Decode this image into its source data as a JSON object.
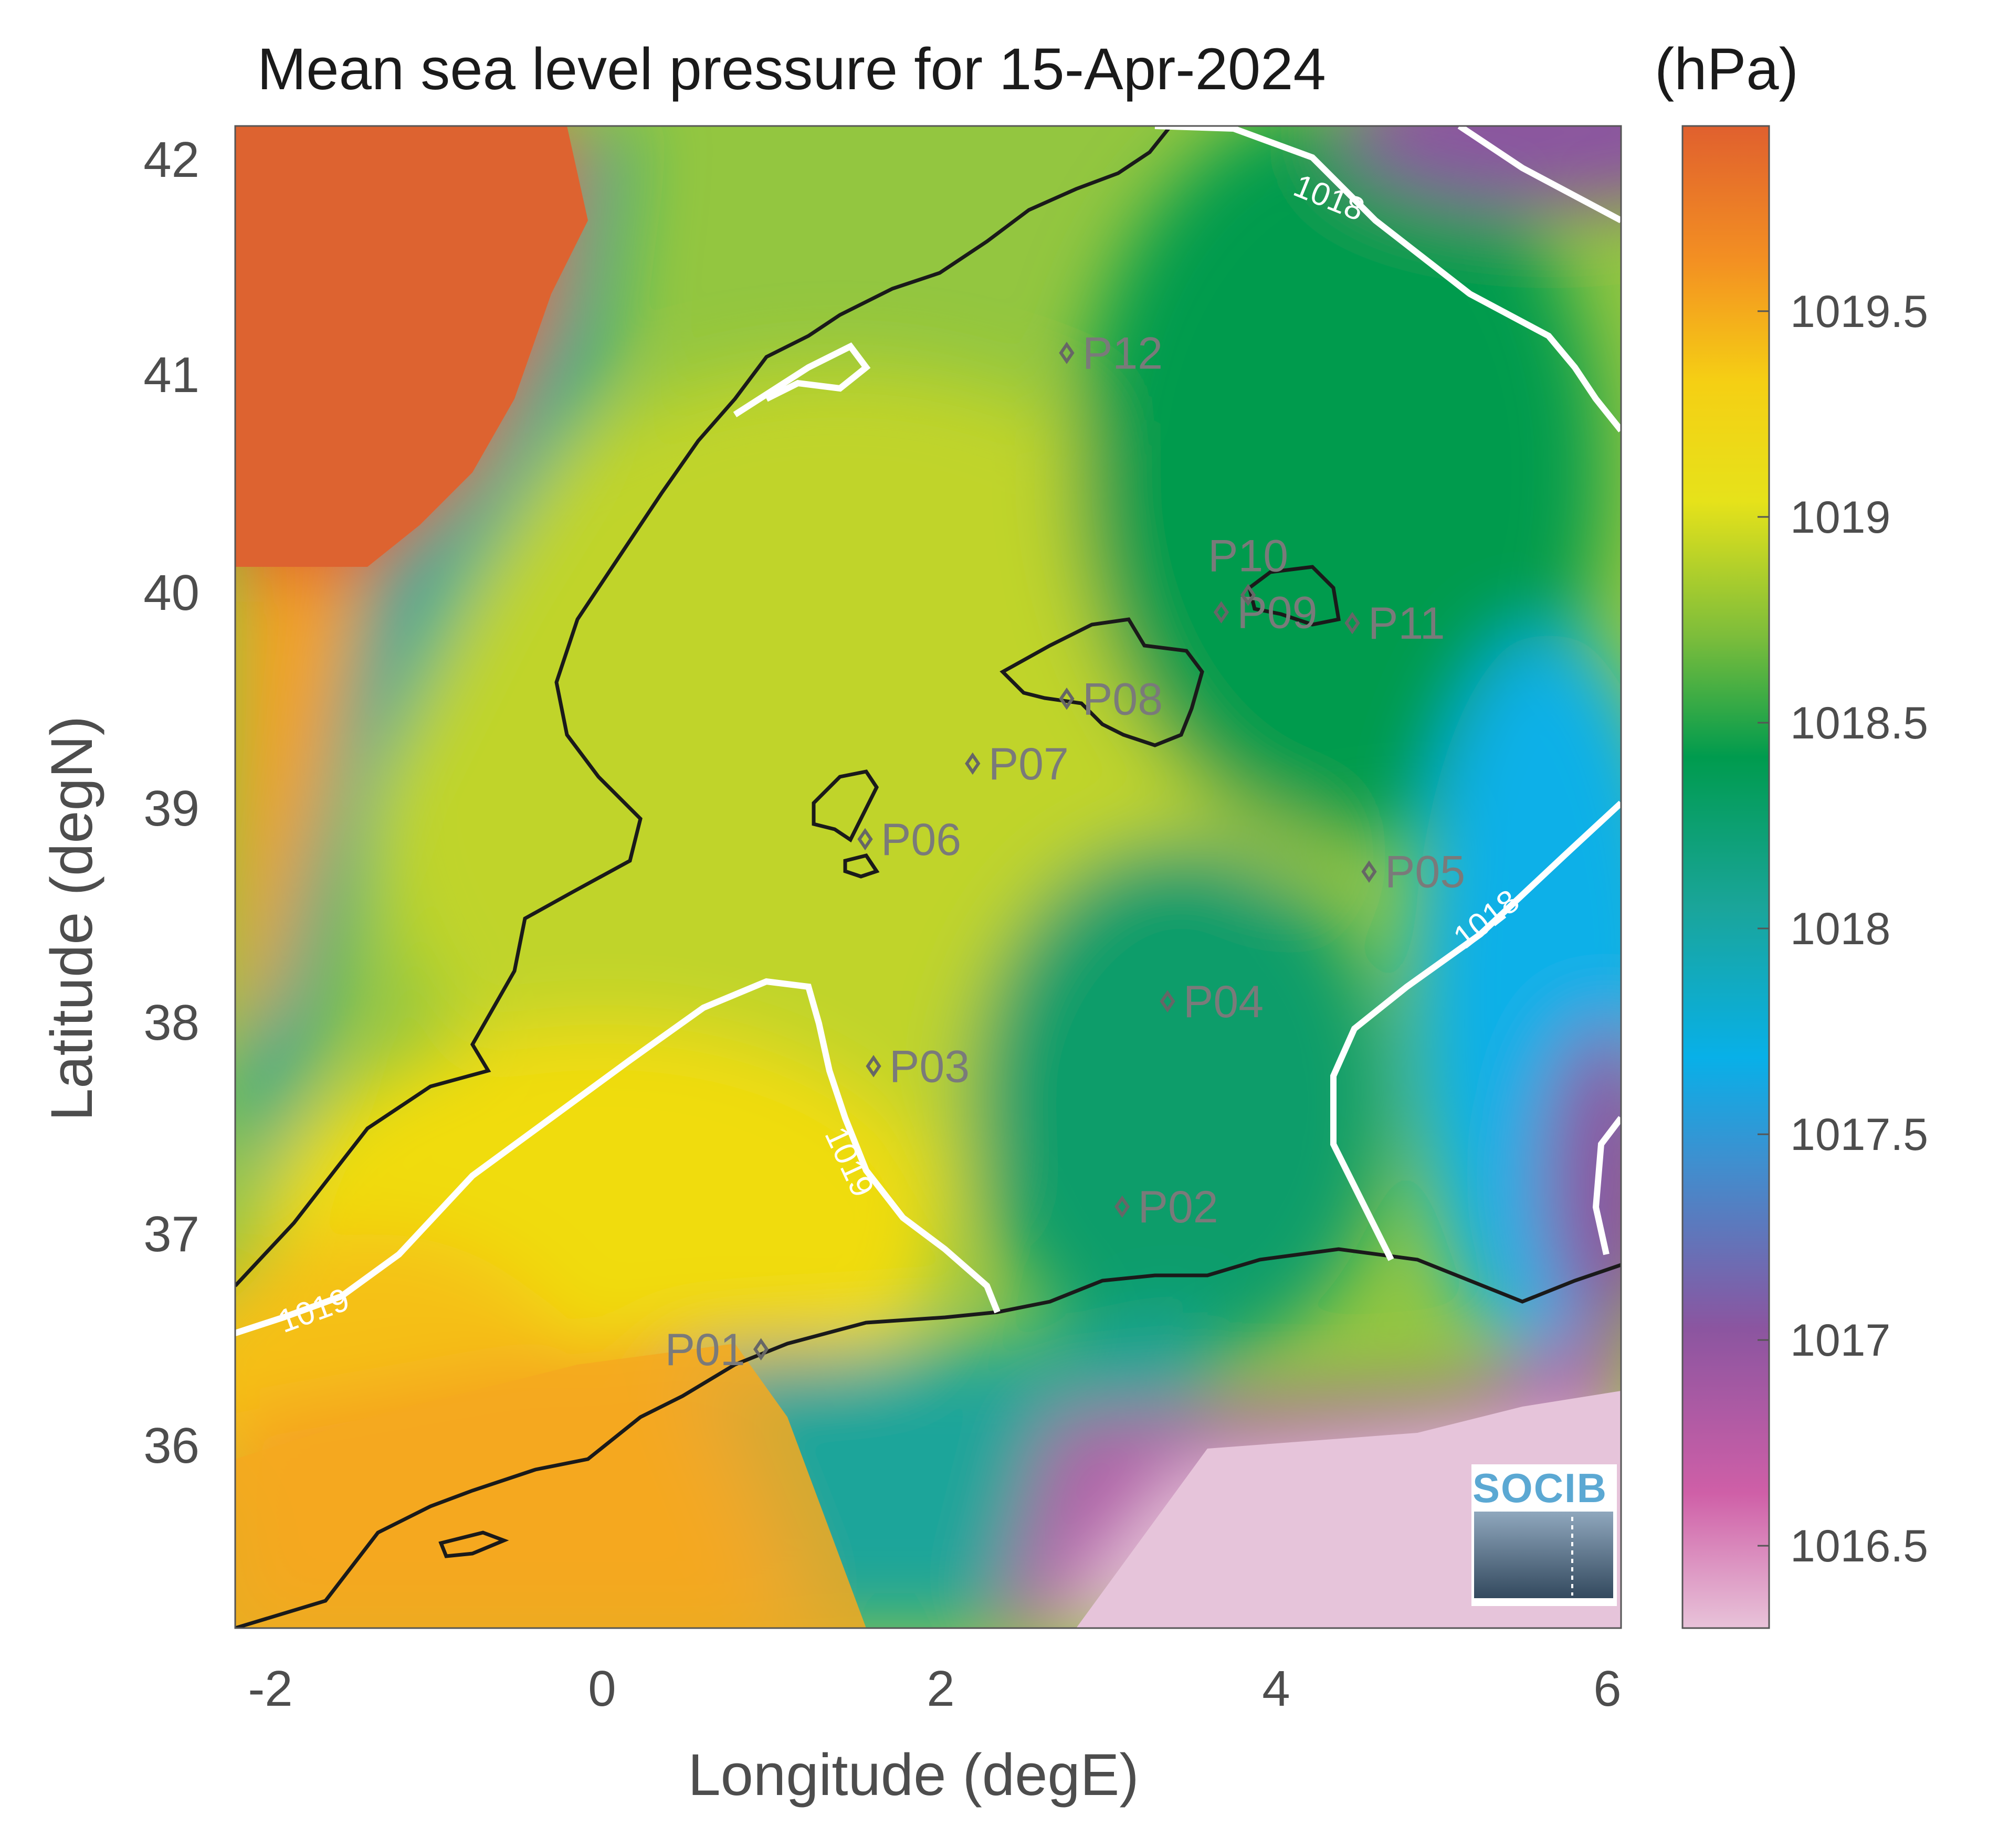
{
  "title": "Mean sea level pressure for 15-Apr-2024",
  "unit_label": "(hPa)",
  "xlabel": "Longitude (degE)",
  "ylabel": "Latitude (degN)",
  "x_ticks": [
    "-2",
    "0",
    "2",
    "4",
    "6"
  ],
  "y_ticks": [
    "36",
    "37",
    "38",
    "39",
    "40",
    "41",
    "42"
  ],
  "x_range": [
    -2.25,
    6.0
  ],
  "y_range": [
    35.2,
    42.15
  ],
  "colorbar": {
    "range": [
      1016.3,
      1019.95
    ],
    "ticks": [
      "1016.5",
      "1017",
      "1017.5",
      "1018",
      "1018.5",
      "1019",
      "1019.5"
    ],
    "tick_values": [
      1016.5,
      1017,
      1017.5,
      1018,
      1018.5,
      1019,
      1019.5
    ],
    "colors": [
      "#e8c3d9",
      "#cf5fa7",
      "#8b55a0",
      "#3f8fcf",
      "#08b0e8",
      "#1aa59a",
      "#009b4e",
      "#7cbd3b",
      "#e6e21a",
      "#f5cf14",
      "#f39022",
      "#e0602e"
    ]
  },
  "contours": [
    {
      "label": "1018",
      "value": 1018
    },
    {
      "label": "1018",
      "value": 1018
    },
    {
      "label": "1019",
      "value": 1019
    },
    {
      "label": "1019",
      "value": 1019
    }
  ],
  "points": [
    {
      "id": "P01",
      "lon": 0.88,
      "lat": 36.49
    },
    {
      "id": "P02",
      "lon": 3.03,
      "lat": 37.15
    },
    {
      "id": "P03",
      "lon": 1.55,
      "lat": 37.8
    },
    {
      "id": "P04",
      "lon": 3.3,
      "lat": 38.1
    },
    {
      "id": "P05",
      "lon": 4.5,
      "lat": 38.7
    },
    {
      "id": "P06",
      "lon": 1.5,
      "lat": 38.85
    },
    {
      "id": "P07",
      "lon": 2.14,
      "lat": 39.2
    },
    {
      "id": "P08",
      "lon": 2.7,
      "lat": 39.5
    },
    {
      "id": "P09",
      "lon": 3.62,
      "lat": 39.9
    },
    {
      "id": "P10",
      "lon": 3.78,
      "lat": 39.98
    },
    {
      "id": "P11",
      "lon": 4.4,
      "lat": 39.85
    },
    {
      "id": "P12",
      "lon": 2.7,
      "lat": 41.1
    }
  ],
  "logo": {
    "text": "SOCIB"
  }
}
